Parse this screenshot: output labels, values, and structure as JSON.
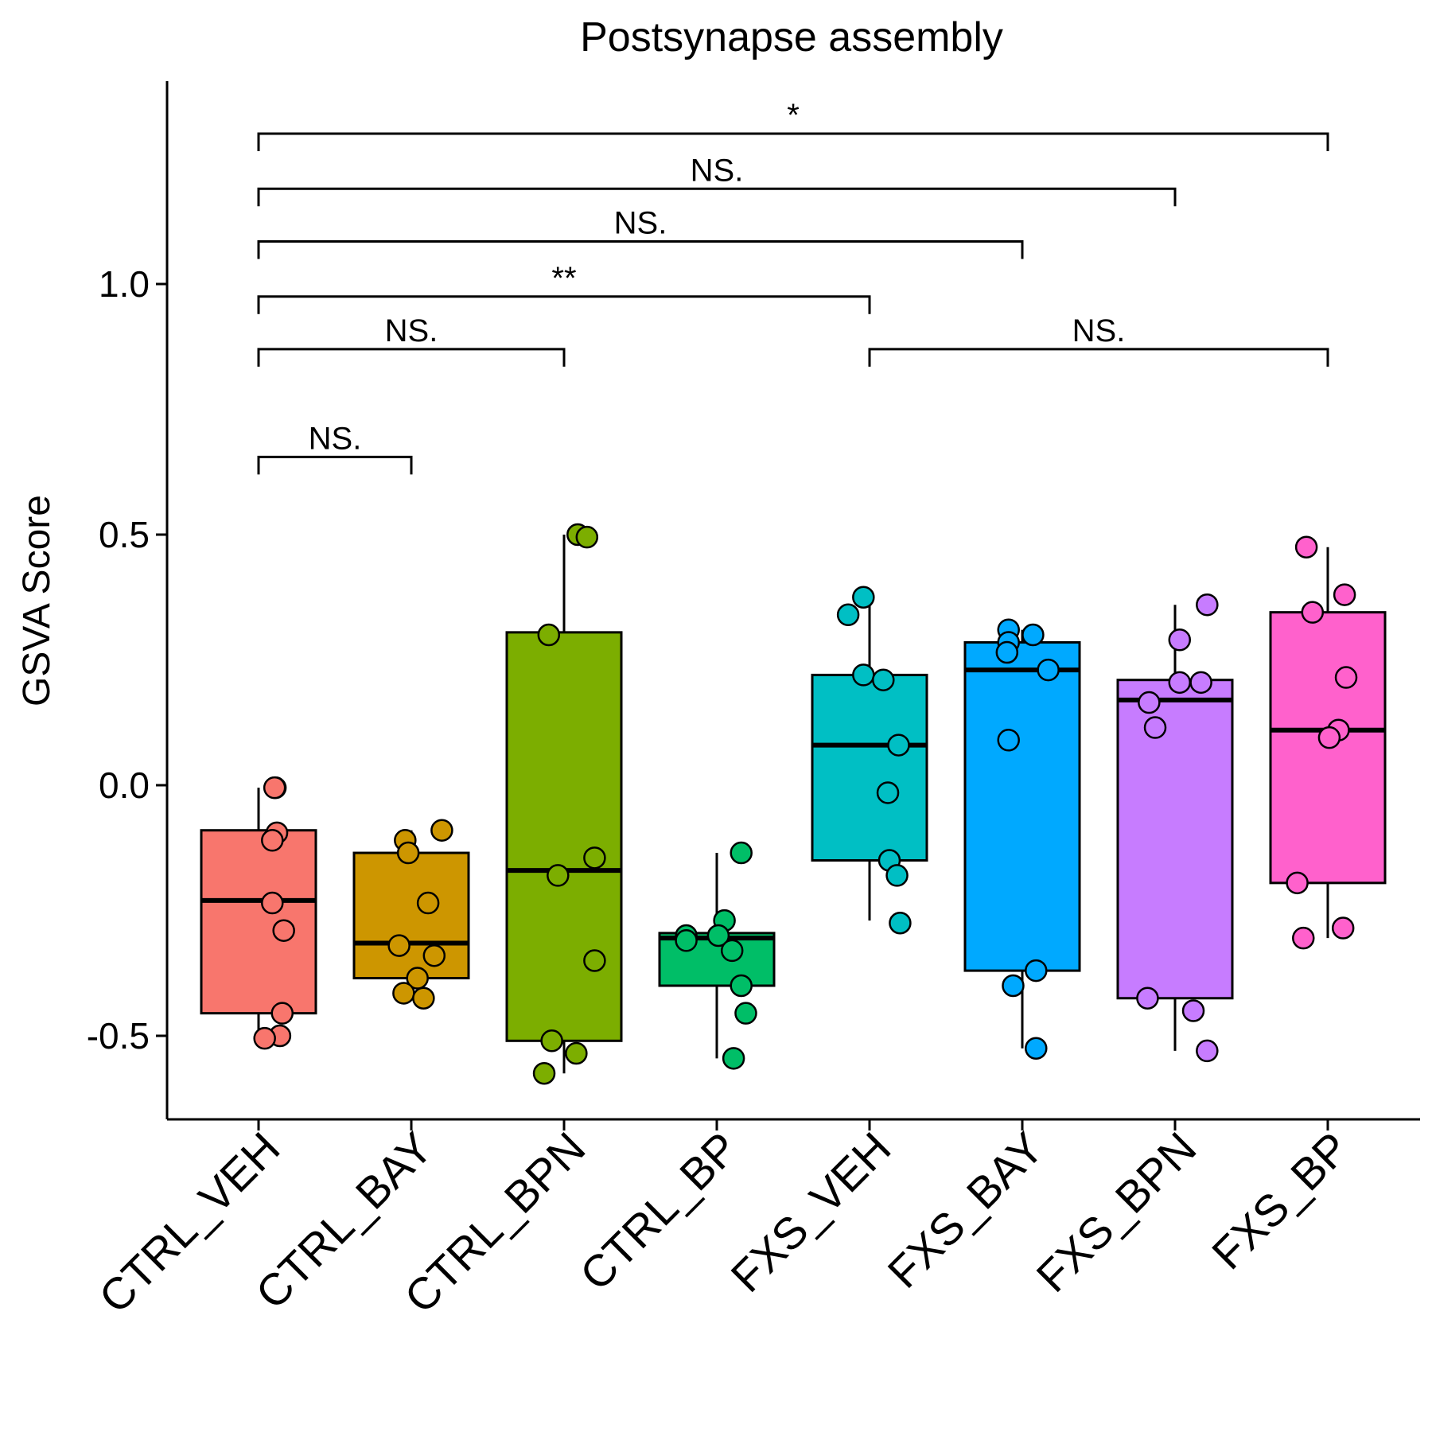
{
  "chart_data": {
    "type": "box",
    "title": "Postsynapse assembly",
    "xlabel": "",
    "ylabel": "GSVA Score",
    "ylim": [
      -0.65,
      1.4
    ],
    "yticks": [
      -0.5,
      0.0,
      0.5,
      1.0
    ],
    "ytick_labels": [
      "-0.5",
      "0.0",
      "0.5",
      "1.0"
    ],
    "grid": false,
    "legend": "none",
    "categories": [
      "CTRL_VEH",
      "CTRL_BAY",
      "CTRL_BPN",
      "CTRL_BP",
      "FXS_VEH",
      "FXS_BAY",
      "FXS_BPN",
      "FXS_BP"
    ],
    "colors": [
      "#F8766D",
      "#CD9600",
      "#7CAE00",
      "#00BE67",
      "#00BFC4",
      "#00A9FF",
      "#C77CFF",
      "#FF61CC"
    ],
    "boxes": [
      {
        "q1": -0.455,
        "median": -0.23,
        "q3": -0.09,
        "whisker_low": -0.505,
        "whisker_high": -0.005
      },
      {
        "q1": -0.385,
        "median": -0.315,
        "q3": -0.135,
        "whisker_low": -0.425,
        "whisker_high": -0.09
      },
      {
        "q1": -0.51,
        "median": -0.17,
        "q3": 0.305,
        "whisker_low": -0.575,
        "whisker_high": 0.5
      },
      {
        "q1": -0.4,
        "median": -0.305,
        "q3": -0.295,
        "whisker_low": -0.545,
        "whisker_high": -0.135
      },
      {
        "q1": -0.15,
        "median": 0.08,
        "q3": 0.22,
        "whisker_low": -0.27,
        "whisker_high": 0.375
      },
      {
        "q1": -0.37,
        "median": 0.23,
        "q3": 0.285,
        "whisker_low": -0.525,
        "whisker_high": 0.31
      },
      {
        "q1": -0.425,
        "median": 0.17,
        "q3": 0.21,
        "whisker_low": -0.53,
        "whisker_high": 0.36
      },
      {
        "q1": -0.195,
        "median": 0.11,
        "q3": 0.345,
        "whisker_low": -0.305,
        "whisker_high": 0.475
      }
    ],
    "points": [
      [
        [
          0.11,
          -0.005
        ],
        [
          0.105,
          -0.005
        ],
        [
          0.12,
          -0.095
        ],
        [
          0.09,
          -0.11
        ],
        [
          0.09,
          -0.235
        ],
        [
          0.165,
          -0.29
        ],
        [
          0.155,
          -0.455
        ],
        [
          0.14,
          -0.5
        ],
        [
          0.04,
          -0.505
        ]
      ],
      [
        [
          -0.04,
          -0.11
        ],
        [
          -0.02,
          -0.135
        ],
        [
          0.2,
          -0.09
        ],
        [
          0.11,
          -0.235
        ],
        [
          -0.08,
          -0.32
        ],
        [
          0.15,
          -0.34
        ],
        [
          0.04,
          -0.385
        ],
        [
          -0.05,
          -0.415
        ],
        [
          0.08,
          -0.425
        ]
      ],
      [
        [
          0.09,
          0.5
        ],
        [
          0.15,
          0.495
        ],
        [
          -0.1,
          0.3
        ],
        [
          -0.04,
          -0.18
        ],
        [
          0.2,
          -0.145
        ],
        [
          0.2,
          -0.35
        ],
        [
          -0.08,
          -0.51
        ],
        [
          0.08,
          -0.535
        ],
        [
          -0.13,
          -0.575
        ]
      ],
      [
        [
          0.16,
          -0.135
        ],
        [
          -0.2,
          -0.3
        ],
        [
          -0.2,
          -0.31
        ],
        [
          0.05,
          -0.27
        ],
        [
          0.01,
          -0.3
        ],
        [
          0.1,
          -0.33
        ],
        [
          0.16,
          -0.4
        ],
        [
          0.19,
          -0.455
        ],
        [
          0.11,
          -0.545
        ]
      ],
      [
        [
          -0.14,
          0.34
        ],
        [
          -0.04,
          0.375
        ],
        [
          -0.04,
          0.22
        ],
        [
          0.09,
          0.21
        ],
        [
          0.19,
          0.08
        ],
        [
          0.12,
          -0.015
        ],
        [
          0.13,
          -0.15
        ],
        [
          0.18,
          -0.18
        ],
        [
          0.2,
          -0.275
        ]
      ],
      [
        [
          -0.09,
          0.31
        ],
        [
          -0.09,
          0.285
        ],
        [
          0.07,
          0.3
        ],
        [
          -0.1,
          0.265
        ],
        [
          0.17,
          0.23
        ],
        [
          -0.09,
          0.09
        ],
        [
          0.09,
          -0.37
        ],
        [
          -0.06,
          -0.4
        ],
        [
          0.09,
          -0.525
        ]
      ],
      [
        [
          0.21,
          0.36
        ],
        [
          0.03,
          0.29
        ],
        [
          0.03,
          0.205
        ],
        [
          0.17,
          0.205
        ],
        [
          -0.17,
          0.165
        ],
        [
          -0.13,
          0.115
        ],
        [
          -0.18,
          -0.425
        ],
        [
          0.12,
          -0.45
        ],
        [
          0.21,
          -0.53
        ]
      ],
      [
        [
          -0.14,
          0.475
        ],
        [
          0.11,
          0.38
        ],
        [
          -0.1,
          0.345
        ],
        [
          0.12,
          0.215
        ],
        [
          0.07,
          0.11
        ],
        [
          0.01,
          0.095
        ],
        [
          -0.2,
          -0.195
        ],
        [
          -0.16,
          -0.305
        ],
        [
          0.1,
          -0.285
        ]
      ]
    ],
    "comparisons": [
      {
        "from": "CTRL_VEH",
        "to": "FXS_BP",
        "y": 1.3,
        "label": "*"
      },
      {
        "from": "CTRL_VEH",
        "to": "FXS_BPN",
        "y": 1.19,
        "label": "NS."
      },
      {
        "from": "CTRL_VEH",
        "to": "FXS_BAY",
        "y": 1.085,
        "label": "NS."
      },
      {
        "from": "CTRL_VEH",
        "to": "FXS_VEH",
        "y": 0.975,
        "label": "**"
      },
      {
        "from": "CTRL_VEH",
        "to": "CTRL_BPN",
        "y": 0.87,
        "label": "NS."
      },
      {
        "from": "FXS_VEH",
        "to": "FXS_BP",
        "y": 0.87,
        "label": "NS."
      },
      {
        "from": "CTRL_VEH",
        "to": "CTRL_BAY",
        "y": 0.655,
        "label": "NS."
      },
      {
        "from": "CTRL_VEH",
        "to": "CTRL_BAY",
        "y": 0.655,
        "label": "NS."
      }
    ]
  }
}
